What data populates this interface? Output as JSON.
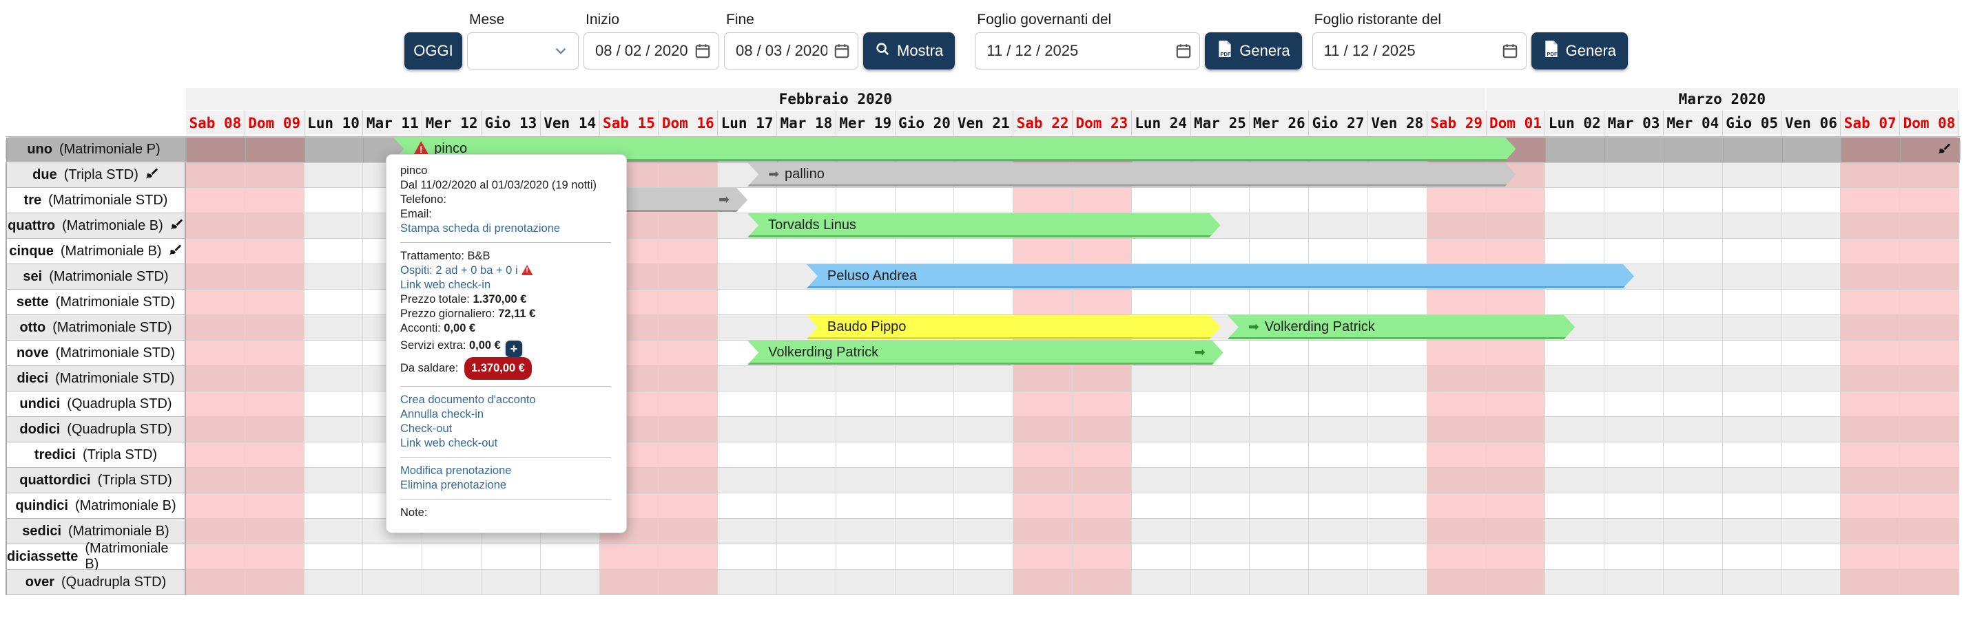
{
  "toolbar": {
    "today_label": "OGGI",
    "mese_label": "Mese",
    "mese_value": "",
    "inizio_label": "Inizio",
    "inizio_value": "08 / 02 / 2020",
    "fine_label": "Fine",
    "fine_value": "08 / 03 / 2020",
    "mostra_label": "Mostra",
    "governanti_label": "Foglio governanti del",
    "governanti_value": "11 / 12 / 2025",
    "genera_governanti_label": "Genera",
    "ristorante_label": "Foglio ristorante del",
    "ristorante_value": "11 / 12 / 2025",
    "genera_ristorante_label": "Genera"
  },
  "colors": {
    "accent": "#1a3a5c",
    "link": "#35689d",
    "weekend_header": "#e60000",
    "selected_row": "#b3b3b3",
    "badge_red": "#b11218",
    "green": "#90ee90",
    "greenDark": "#5abf5a",
    "gray": "#c9c9c9",
    "grayDark": "#9c9c9c",
    "blue": "#86c9f4",
    "blueDark": "#58a6dd",
    "yellow": "#ffff4d",
    "yellowDark": "#d9d938"
  },
  "calendar": {
    "months": [
      {
        "label": "Febbraio 2020",
        "span": 22
      },
      {
        "label": "Marzo 2020",
        "span": 8
      }
    ],
    "days": [
      {
        "label": "Sab 08",
        "weekend": true
      },
      {
        "label": "Dom 09",
        "weekend": true
      },
      {
        "label": "Lun 10",
        "weekend": false
      },
      {
        "label": "Mar 11",
        "weekend": false
      },
      {
        "label": "Mer 12",
        "weekend": false
      },
      {
        "label": "Gio 13",
        "weekend": false
      },
      {
        "label": "Ven 14",
        "weekend": false
      },
      {
        "label": "Sab 15",
        "weekend": true
      },
      {
        "label": "Dom 16",
        "weekend": true
      },
      {
        "label": "Lun 17",
        "weekend": false
      },
      {
        "label": "Mar 18",
        "weekend": false
      },
      {
        "label": "Mer 19",
        "weekend": false
      },
      {
        "label": "Gio 20",
        "weekend": false
      },
      {
        "label": "Ven 21",
        "weekend": false
      },
      {
        "label": "Sab 22",
        "weekend": true
      },
      {
        "label": "Dom 23",
        "weekend": true
      },
      {
        "label": "Lun 24",
        "weekend": false
      },
      {
        "label": "Mar 25",
        "weekend": false
      },
      {
        "label": "Mer 26",
        "weekend": false
      },
      {
        "label": "Gio 27",
        "weekend": false
      },
      {
        "label": "Ven 28",
        "weekend": false
      },
      {
        "label": "Sab 29",
        "weekend": true
      },
      {
        "label": "Dom 01",
        "weekend": true
      },
      {
        "label": "Lun 02",
        "weekend": false
      },
      {
        "label": "Mar 03",
        "weekend": false
      },
      {
        "label": "Mer 04",
        "weekend": false
      },
      {
        "label": "Gio 05",
        "weekend": false
      },
      {
        "label": "Ven 06",
        "weekend": false
      },
      {
        "label": "Sab 07",
        "weekend": true
      },
      {
        "label": "Dom 08",
        "weekend": true
      }
    ],
    "rooms": [
      {
        "name": "uno",
        "type": "(Matrimoniale P)",
        "brush": true,
        "selected": true
      },
      {
        "name": "due",
        "type": "(Tripla STD)",
        "brush": true
      },
      {
        "name": "tre",
        "type": "(Matrimoniale STD)"
      },
      {
        "name": "quattro",
        "type": "(Matrimoniale B)",
        "brush": true
      },
      {
        "name": "cinque",
        "type": "(Matrimoniale B)",
        "brush": true
      },
      {
        "name": "sei",
        "type": "(Matrimoniale STD)"
      },
      {
        "name": "sette",
        "type": "(Matrimoniale STD)"
      },
      {
        "name": "otto",
        "type": "(Matrimoniale STD)"
      },
      {
        "name": "nove",
        "type": "(Matrimoniale STD)"
      },
      {
        "name": "dieci",
        "type": "(Matrimoniale STD)"
      },
      {
        "name": "undici",
        "type": "(Quadrupla STD)"
      },
      {
        "name": "dodici",
        "type": "(Quadrupla STD)"
      },
      {
        "name": "tredici",
        "type": "(Tripla STD)"
      },
      {
        "name": "quattordici",
        "type": "(Tripla STD)"
      },
      {
        "name": "quindici",
        "type": "(Matrimoniale B)"
      },
      {
        "name": "sedici",
        "type": "(Matrimoniale B)"
      },
      {
        "name": "diciassette",
        "type": "(Matrimoniale B)"
      },
      {
        "name": "over",
        "type": "(Quadrupla STD)"
      }
    ],
    "reservations": [
      {
        "room": 0,
        "start": 3.5,
        "end": 22.5,
        "color": "green",
        "label": "pinco",
        "warn": true
      },
      {
        "room": 1,
        "start": 9.5,
        "end": 22.5,
        "color": "gray",
        "label": "pallino",
        "startArrow": true
      },
      {
        "room": 2,
        "start": 4.5,
        "end": 9.5,
        "color": "gray",
        "label": "",
        "endArrow": true,
        "flatStart": true
      },
      {
        "room": 3,
        "start": 9.5,
        "end": 17.5,
        "color": "green",
        "label": "Torvalds Linus"
      },
      {
        "room": 5,
        "start": 10.5,
        "end": 24.5,
        "color": "blue",
        "label": "Peluso Andrea"
      },
      {
        "room": 7,
        "start": 10.5,
        "end": 17.5,
        "color": "yellow",
        "label": "Baudo Pippo"
      },
      {
        "room": 7,
        "start": 17.62,
        "end": 23.5,
        "color": "green",
        "label": "Volkerding Patrick",
        "startArrow": true
      },
      {
        "room": 8,
        "start": 9.5,
        "end": 17.55,
        "color": "green",
        "label": "Volkerding Patrick",
        "endArrow": true
      }
    ]
  },
  "popup": {
    "sections": [
      {
        "lines": [
          {
            "t": "pinco"
          },
          {
            "t": "Dal 11/02/2020 al 01/03/2020 (19 notti)"
          },
          {
            "t": "Telefono:"
          },
          {
            "t": "Email:"
          },
          {
            "t": "Stampa scheda di prenotazione",
            "link": true
          }
        ]
      },
      {
        "lines": [
          {
            "t": "Trattamento: B&B"
          },
          {
            "t": "Ospiti: 2 ad + 0 ba + 0 i",
            "link": true,
            "warn": true
          },
          {
            "t": "Link web check-in",
            "link": true
          },
          {
            "t": "Prezzo totale: ",
            "b": "1.370,00 €"
          },
          {
            "t": "Prezzo giornaliero: ",
            "b": "72,11 €"
          },
          {
            "t": "Acconti: ",
            "b": "0,00 €"
          },
          {
            "t": "Servizi extra: ",
            "b": "0,00 €",
            "plus": true
          },
          {
            "t": "Da saldare: ",
            "badge": "1.370,00 €"
          }
        ]
      },
      {
        "lines": [
          {
            "t": "Crea documento d'acconto",
            "link": true
          },
          {
            "t": "Annulla check-in",
            "link": true
          },
          {
            "t": "Check-out",
            "link": true
          },
          {
            "t": "Link web check-out",
            "link": true
          }
        ]
      },
      {
        "lines": [
          {
            "t": "Modifica prenotazione",
            "link": true
          },
          {
            "t": "Elimina prenotazione",
            "link": true
          }
        ]
      },
      {
        "lines": [
          {
            "t": "Note:"
          }
        ]
      }
    ]
  }
}
